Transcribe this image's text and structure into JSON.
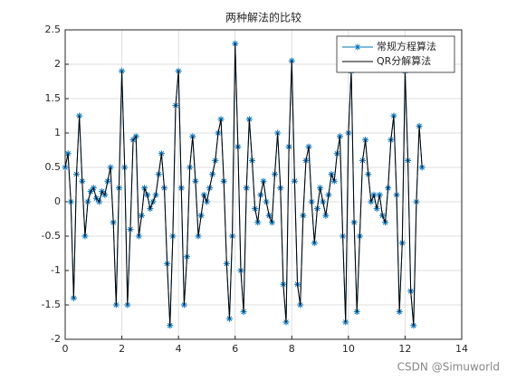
{
  "chart_data": {
    "type": "line",
    "title": "两种解法的比较",
    "x": [
      0.0,
      0.1,
      0.2,
      0.3,
      0.4,
      0.5,
      0.6,
      0.7,
      0.8,
      0.9,
      1.0,
      1.1,
      1.2,
      1.3,
      1.4,
      1.5,
      1.6,
      1.7,
      1.8,
      1.9,
      2.0,
      2.1,
      2.2,
      2.3,
      2.4,
      2.5,
      2.6,
      2.7,
      2.8,
      2.9,
      3.0,
      3.1,
      3.2,
      3.3,
      3.4,
      3.5,
      3.6,
      3.7,
      3.8,
      3.9,
      4.0,
      4.1,
      4.2,
      4.3,
      4.4,
      4.5,
      4.6,
      4.7,
      4.8,
      4.9,
      5.0,
      5.1,
      5.2,
      5.3,
      5.4,
      5.5,
      5.6,
      5.7,
      5.8,
      5.9,
      6.0,
      6.1,
      6.2,
      6.3,
      6.4,
      6.5,
      6.6,
      6.7,
      6.8,
      6.9,
      7.0,
      7.1,
      7.2,
      7.3,
      7.4,
      7.5,
      7.6,
      7.7,
      7.8,
      7.9,
      8.0,
      8.1,
      8.2,
      8.3,
      8.4,
      8.5,
      8.6,
      8.7,
      8.8,
      8.9,
      9.0,
      9.1,
      9.2,
      9.3,
      9.4,
      9.5,
      9.6,
      9.7,
      9.8,
      9.9,
      10.0,
      10.1,
      10.2,
      10.3,
      10.4,
      10.5,
      10.6,
      10.7,
      10.8,
      10.9,
      11.0,
      11.1,
      11.2,
      11.3,
      11.4,
      11.5,
      11.6,
      11.7,
      11.8,
      11.9,
      12.0,
      12.1,
      12.2,
      12.3,
      12.4,
      12.5,
      12.6
    ],
    "series": [
      {
        "name": "常规方程算法",
        "color": "#0072BD",
        "marker": "star",
        "values": [
          0.5,
          0.7,
          0.0,
          -1.4,
          0.4,
          1.25,
          0.3,
          -0.5,
          0.0,
          0.15,
          0.2,
          0.05,
          0.0,
          0.15,
          0.1,
          0.3,
          0.5,
          -0.3,
          -1.5,
          0.2,
          1.9,
          0.5,
          -1.5,
          -0.4,
          0.9,
          0.95,
          -0.5,
          -0.2,
          0.2,
          0.1,
          -0.1,
          0.0,
          0.1,
          0.4,
          0.7,
          0.2,
          -0.9,
          -1.8,
          -0.5,
          1.4,
          1.9,
          0.2,
          -1.5,
          -0.8,
          0.5,
          0.95,
          0.3,
          -0.5,
          -0.2,
          0.1,
          0.0,
          0.2,
          0.4,
          0.6,
          1.0,
          1.2,
          0.3,
          -0.9,
          -1.7,
          -0.5,
          2.3,
          0.8,
          -1.0,
          -1.6,
          0.2,
          1.2,
          0.6,
          -0.1,
          -0.3,
          0.1,
          0.3,
          0.0,
          -0.2,
          -0.3,
          0.4,
          1.0,
          0.2,
          -1.2,
          -1.75,
          0.8,
          2.05,
          0.3,
          -1.2,
          -1.5,
          -0.2,
          0.6,
          0.8,
          0.0,
          -0.6,
          -0.1,
          0.2,
          0.0,
          -0.2,
          0.1,
          0.4,
          0.3,
          0.7,
          0.95,
          -0.5,
          -1.75,
          1.0,
          1.9,
          -0.3,
          -1.6,
          -0.5,
          0.6,
          0.9,
          0.4,
          0.0,
          0.1,
          -0.1,
          0.1,
          -0.2,
          -0.3,
          0.2,
          0.9,
          1.25,
          0.1,
          -1.6,
          -0.6,
          1.9,
          0.6,
          -1.3,
          -1.8,
          0.0,
          1.1,
          0.5
        ]
      },
      {
        "name": "QR分解算法",
        "color": "#000000",
        "marker": "none",
        "values": [
          0.5,
          0.7,
          0.0,
          -1.4,
          0.4,
          1.25,
          0.3,
          -0.5,
          0.0,
          0.15,
          0.2,
          0.05,
          0.0,
          0.15,
          0.1,
          0.3,
          0.5,
          -0.3,
          -1.5,
          0.2,
          1.9,
          0.5,
          -1.5,
          -0.4,
          0.9,
          0.95,
          -0.5,
          -0.2,
          0.2,
          0.1,
          -0.1,
          0.0,
          0.1,
          0.4,
          0.7,
          0.2,
          -0.9,
          -1.8,
          -0.5,
          1.4,
          1.9,
          0.2,
          -1.5,
          -0.8,
          0.5,
          0.95,
          0.3,
          -0.5,
          -0.2,
          0.1,
          0.0,
          0.2,
          0.4,
          0.6,
          1.0,
          1.2,
          0.3,
          -0.9,
          -1.7,
          -0.5,
          2.3,
          0.8,
          -1.0,
          -1.6,
          0.2,
          1.2,
          0.6,
          -0.1,
          -0.3,
          0.1,
          0.3,
          0.0,
          -0.2,
          -0.3,
          0.4,
          1.0,
          0.2,
          -1.2,
          -1.75,
          0.8,
          2.05,
          0.3,
          -1.2,
          -1.5,
          -0.2,
          0.6,
          0.8,
          0.0,
          -0.6,
          -0.1,
          0.2,
          0.0,
          -0.2,
          0.1,
          0.4,
          0.3,
          0.7,
          0.95,
          -0.5,
          -1.75,
          1.0,
          1.9,
          -0.3,
          -1.6,
          -0.5,
          0.6,
          0.9,
          0.4,
          0.0,
          0.1,
          -0.1,
          0.1,
          -0.2,
          -0.3,
          0.2,
          0.9,
          1.25,
          0.1,
          -1.6,
          -0.6,
          1.9,
          0.6,
          -1.3,
          -1.8,
          0.0,
          1.1,
          0.5
        ]
      }
    ],
    "xlim": [
      0,
      14
    ],
    "xticks": [
      0,
      2,
      4,
      6,
      8,
      10,
      12,
      14
    ],
    "ylim": [
      -2,
      2.5
    ],
    "yticks": [
      -2,
      -1.5,
      -1,
      -0.5,
      0,
      0.5,
      1,
      1.5,
      2,
      2.5
    ],
    "grid": true,
    "legend": "northeast",
    "watermark": "CSDN @Simuworld"
  }
}
